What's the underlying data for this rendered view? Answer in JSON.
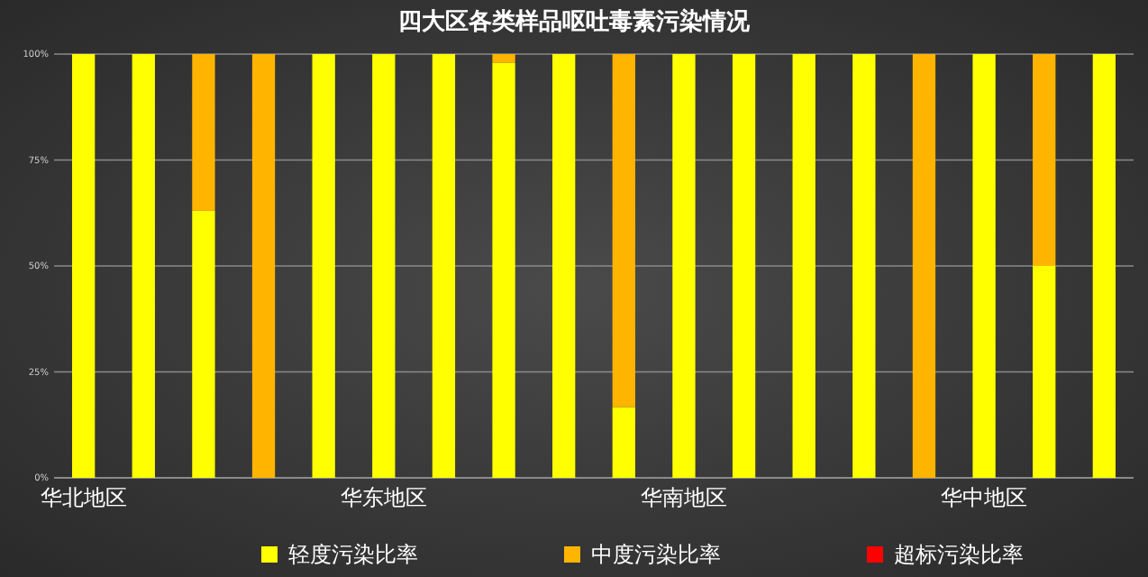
{
  "chart_data": {
    "type": "bar",
    "title": "四大区各类样品呕吐毒素污染情况",
    "stacked": true,
    "categories": [
      "华北地区",
      null,
      null,
      null,
      null,
      "华东地区",
      null,
      null,
      null,
      null,
      "华南地区",
      null,
      null,
      null,
      null,
      "华中地区",
      null,
      null
    ],
    "series": [
      {
        "name": "轻度污染比率",
        "color": "#ffff00",
        "values": [
          100,
          100,
          63,
          0,
          100,
          100,
          100,
          98,
          100,
          16.7,
          100,
          100,
          100,
          100,
          0,
          100,
          50,
          100
        ]
      },
      {
        "name": "中度污染比率",
        "color": "#ffb400",
        "values": [
          0,
          0,
          37,
          100,
          0,
          0,
          0,
          2,
          0,
          83.3,
          0,
          0,
          0,
          0,
          100,
          0,
          50,
          0
        ]
      },
      {
        "name": "超标污染比率",
        "color": "#ff0000",
        "values": [
          0,
          0,
          0,
          0,
          0,
          0,
          0,
          0,
          0,
          0,
          0,
          0,
          0,
          0,
          0,
          0,
          0,
          0
        ]
      }
    ],
    "ylim": [
      0,
      100
    ],
    "yticks": [
      {
        "value": 0,
        "label": "0%"
      },
      {
        "value": 25,
        "label": "25%"
      },
      {
        "value": 50,
        "label": "50%"
      },
      {
        "value": 75,
        "label": "75%"
      },
      {
        "value": 100,
        "label": "100%"
      }
    ],
    "grid": "y",
    "legend": "bottom"
  }
}
